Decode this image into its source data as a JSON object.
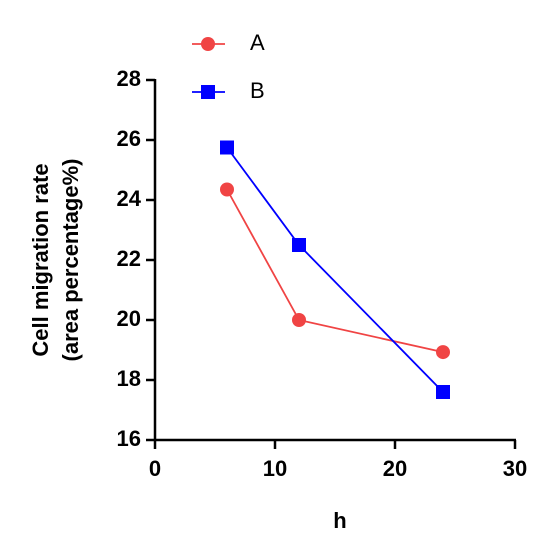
{
  "chart_data": {
    "type": "line",
    "x_label": "h",
    "y_label": [
      "Cell migration rate",
      "(area percentage%)"
    ],
    "x": [
      6,
      12,
      24
    ],
    "series": [
      {
        "name": "A",
        "color": "#f04444",
        "marker": "circle",
        "values": [
          24.35,
          20.0,
          18.93
        ]
      },
      {
        "name": "B",
        "color": "#0000ff",
        "marker": "square",
        "values": [
          25.75,
          22.5,
          17.6
        ]
      }
    ],
    "xlim": [
      0,
      30
    ],
    "xticks": [
      0,
      10,
      20,
      30
    ],
    "ylim": [
      16,
      28
    ],
    "yticks": [
      16,
      18,
      20,
      22,
      24,
      26,
      28
    ],
    "grid": false,
    "legend": "top"
  }
}
